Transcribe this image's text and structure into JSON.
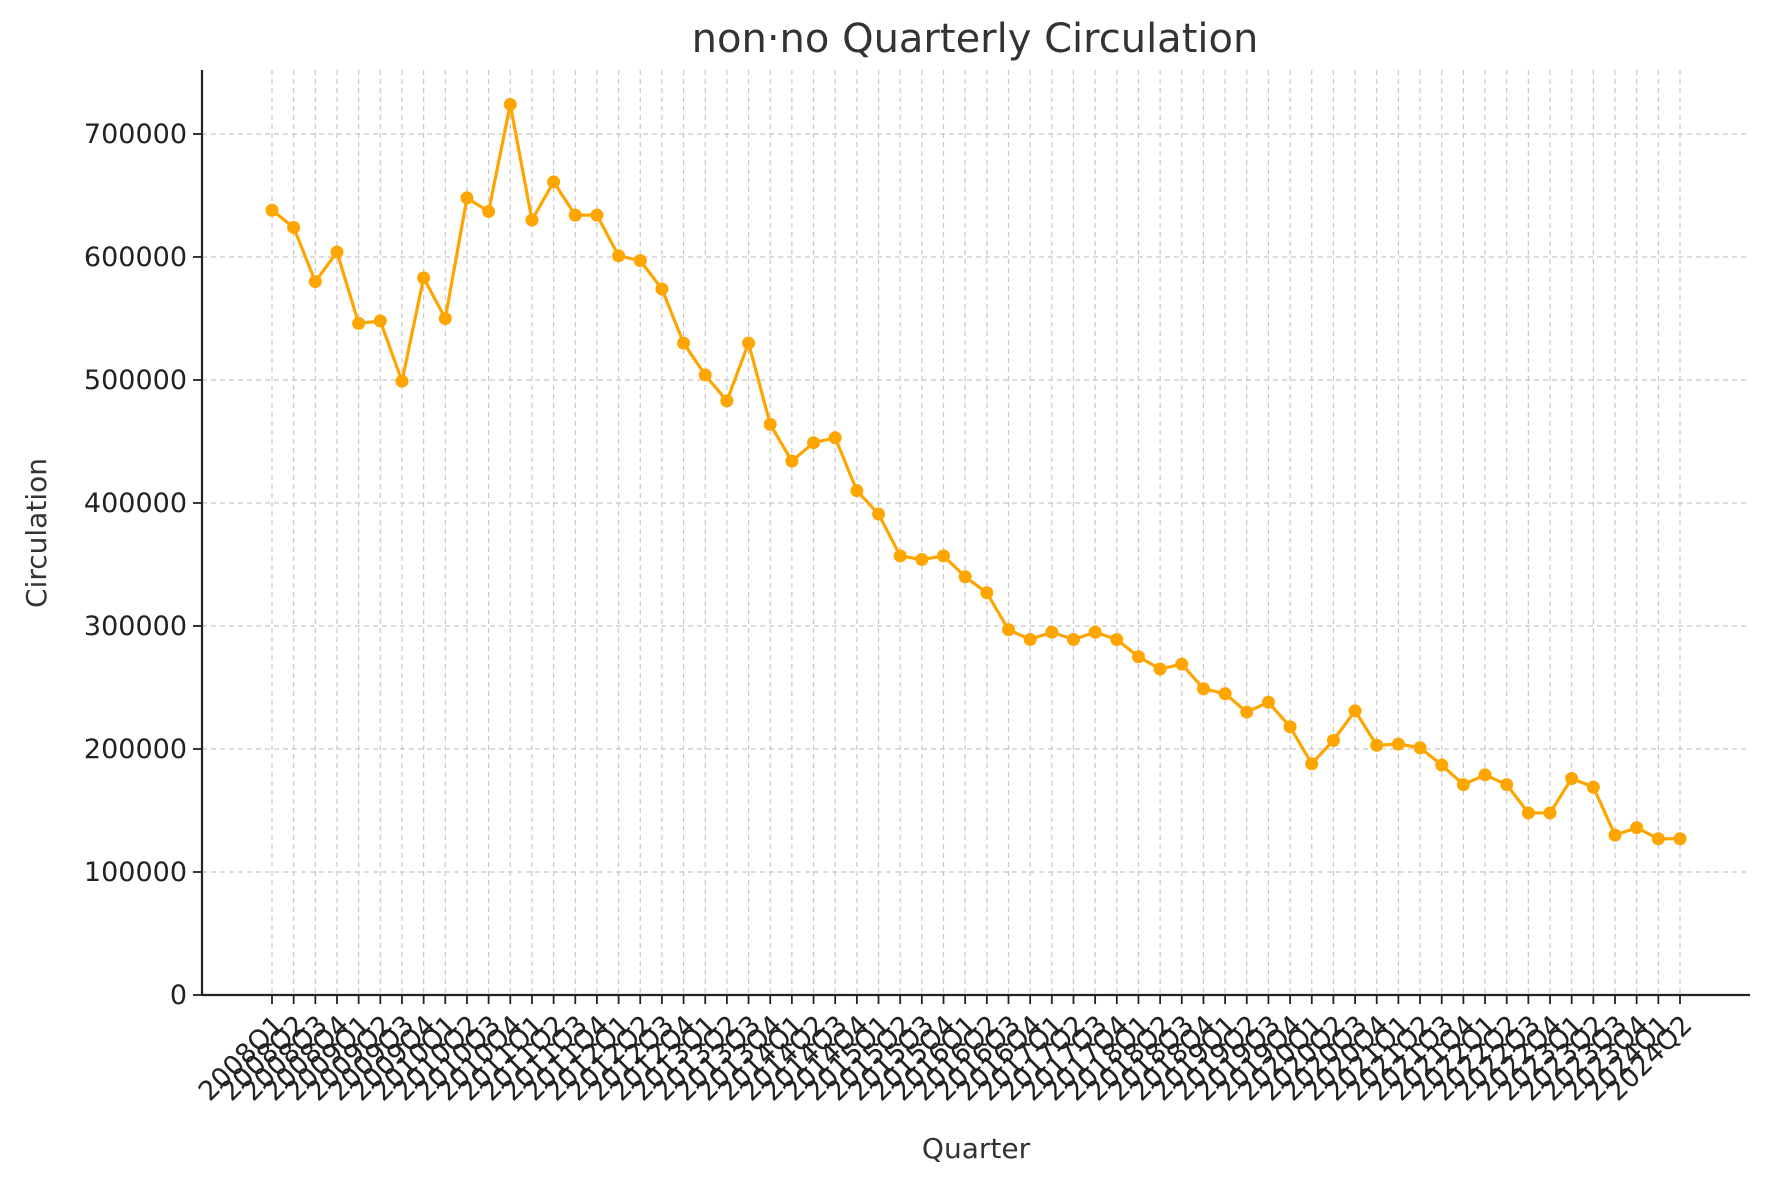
{
  "chart_data": {
    "type": "line",
    "title": "non‧no Quarterly Circulation",
    "xlabel": "Quarter",
    "ylabel": "Circulation",
    "ylim": [
      0,
      752000
    ],
    "yticks": [
      0,
      100000,
      200000,
      300000,
      400000,
      500000,
      600000,
      700000
    ],
    "grid": true,
    "line_color": "#FFA500",
    "categories": [
      "2008Q1",
      "2008Q2",
      "2008Q3",
      "2008Q4",
      "2009Q1",
      "2009Q2",
      "2009Q3",
      "2009Q4",
      "2010Q1",
      "2010Q2",
      "2010Q3",
      "2010Q4",
      "2011Q1",
      "2011Q2",
      "2011Q3",
      "2011Q4",
      "2012Q1",
      "2012Q2",
      "2012Q3",
      "2012Q4",
      "2013Q1",
      "2013Q2",
      "2013Q3",
      "2013Q4",
      "2014Q1",
      "2014Q2",
      "2014Q3",
      "2014Q4",
      "2015Q1",
      "2015Q2",
      "2015Q3",
      "2015Q4",
      "2016Q1",
      "2016Q2",
      "2016Q3",
      "2016Q4",
      "2017Q1",
      "2017Q2",
      "2017Q3",
      "2017Q4",
      "2018Q1",
      "2018Q2",
      "2018Q3",
      "2018Q4",
      "2019Q1",
      "2019Q2",
      "2019Q3",
      "2019Q4",
      "2020Q1",
      "2020Q2",
      "2020Q3",
      "2020Q4",
      "2021Q1",
      "2021Q2",
      "2021Q3",
      "2021Q4",
      "2022Q1",
      "2022Q2",
      "2022Q3",
      "2022Q4",
      "2023Q1",
      "2023Q2",
      "2023Q3",
      "2023Q4",
      "2024Q1",
      "2024Q2"
    ],
    "series": [
      {
        "values": [
          638000,
          624000,
          580000,
          604000,
          546000,
          548000,
          499000,
          583000,
          550000,
          648000,
          637000,
          724000,
          630000,
          661000,
          634000,
          634000,
          601000,
          597000,
          574000,
          530000,
          504000,
          483000,
          530000,
          464000,
          434000,
          449000,
          453000,
          410000,
          391000,
          357000,
          354000,
          357000,
          340000,
          327000,
          297000,
          289000,
          295000,
          289000,
          295000,
          289000,
          275000,
          265000,
          269000,
          249000,
          245000,
          230000,
          238000,
          218000,
          188000,
          207000,
          231000,
          203000,
          204000,
          201000,
          187000,
          171000,
          179000,
          171000,
          148000,
          148000,
          176000,
          169000,
          130000,
          136000,
          127000,
          127000
        ]
      }
    ]
  }
}
